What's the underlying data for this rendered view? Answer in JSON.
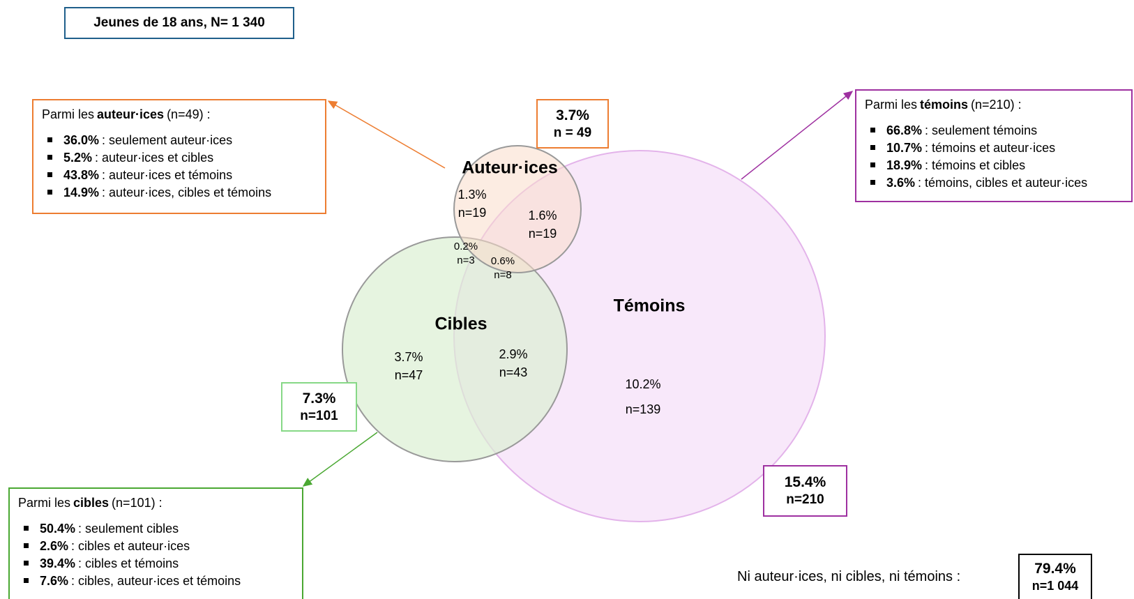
{
  "header": {
    "title": "Jeunes de 18 ans, N= 1 340"
  },
  "circles": [
    {
      "label": "Auteur·ices"
    },
    {
      "label": "Cibles"
    },
    {
      "label": "Témoins"
    }
  ],
  "regions": [
    {
      "percent": "1.3%",
      "n": "n=19"
    },
    {
      "percent": "1.6%",
      "n": "n=19"
    },
    {
      "percent": "0.2%",
      "n": "n=3"
    },
    {
      "percent": "0.6%",
      "n": "n=8"
    },
    {
      "percent": "3.7%",
      "n": "n=47"
    },
    {
      "percent": "2.9%",
      "n": "n=43"
    },
    {
      "percent": "10.2%",
      "n": "n=139"
    }
  ],
  "totals": [
    {
      "percent": "3.7%",
      "n": "n = 49"
    },
    {
      "percent": "7.3%",
      "n": "n=101"
    },
    {
      "percent": "15.4%",
      "n": "n=210"
    }
  ],
  "info_boxes": [
    {
      "intro": "Parmi les",
      "group": "auteur·ices",
      "count": "(n=49) :",
      "items": [
        {
          "value": "36.0%",
          "text": ": seulement auteur·ices"
        },
        {
          "value": "5.2%",
          "text": ": auteur·ices et cibles"
        },
        {
          "value": "43.8%",
          "text": ": auteur·ices et témoins"
        },
        {
          "value": "14.9%",
          "text": ": auteur·ices, cibles et témoins"
        }
      ]
    },
    {
      "intro": "Parmi les",
      "group": "témoins",
      "count": "(n=210) :",
      "items": [
        {
          "value": "66.8%",
          "text": ": seulement témoins"
        },
        {
          "value": "10.7%",
          "text": ": témoins et auteur·ices"
        },
        {
          "value": "18.9%",
          "text": ": témoins et cibles"
        },
        {
          "value": "3.6%",
          "text": ": témoins, cibles et auteur·ices"
        }
      ]
    },
    {
      "intro": "Parmi les",
      "group": "cibles",
      "count": "(n=101) :",
      "items": [
        {
          "value": "50.4%",
          "text": ": seulement cibles"
        },
        {
          "value": "2.6%",
          "text": ": cibles et auteur·ices"
        },
        {
          "value": "39.4%",
          "text": ": cibles et témoins"
        },
        {
          "value": "7.6%",
          "text": ": cibles, auteur·ices et témoins"
        }
      ]
    }
  ],
  "footer": {
    "label": "Ni auteur·ices, ni cibles, ni témoins :",
    "percent": "79.4%",
    "n": "n=1 044"
  }
}
